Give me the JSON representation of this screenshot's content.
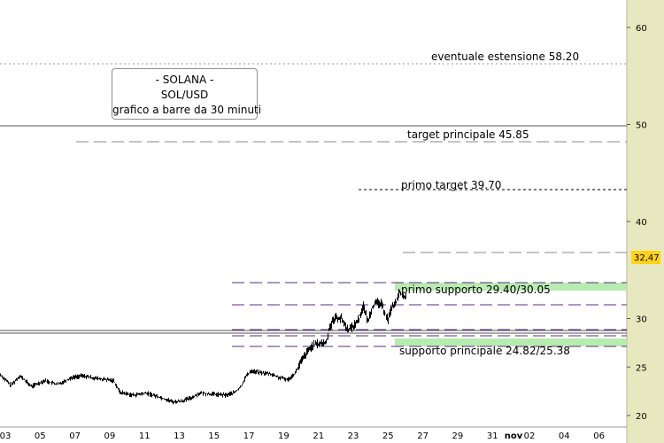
{
  "chart_data": {
    "type": "bar",
    "instrument": {
      "line1": "- SOLANA -",
      "line2": "SOL/USD",
      "line3": "grafico a barre da 30 minuti"
    },
    "last_price_label": "32,47",
    "last_price": 32.47,
    "y_ticks": [
      20,
      25,
      30,
      40,
      50,
      60
    ],
    "y_tick_labels": [
      "20",
      "25",
      "30",
      "40",
      "50",
      "60"
    ],
    "ylim": [
      19.5,
      66
    ],
    "x_tick_labels": [
      "03",
      "05",
      "07",
      "09",
      "11",
      "13",
      "15",
      "17",
      "19",
      "21",
      "23",
      "25",
      "27",
      "29",
      "31",
      "nov",
      "02",
      "04",
      "06"
    ],
    "levels": [
      {
        "name": "extension",
        "label": "eventuale estensione 58.20",
        "value": 58.2,
        "style": "dotted"
      },
      {
        "name": "main-target",
        "label": "target principale 45.85",
        "value": 45.85,
        "style": "dashed"
      },
      {
        "name": "first-target",
        "label": "primo target 39.70",
        "value": 39.7,
        "style": "dotted"
      },
      {
        "name": "first-support",
        "label": "primo supporto 29.40/30.05",
        "low": 29.4,
        "high": 30.05,
        "style": "band"
      },
      {
        "name": "main-support",
        "label": "supporto principale 24.82/25.38",
        "low": 24.82,
        "high": 25.38,
        "style": "band"
      }
    ],
    "price_path": [
      [
        0,
        24.2
      ],
      [
        12,
        23.1
      ],
      [
        22,
        24.1
      ],
      [
        35,
        23.0
      ],
      [
        50,
        23.6
      ],
      [
        65,
        23.2
      ],
      [
        80,
        23.9
      ],
      [
        92,
        24.1
      ],
      [
        110,
        23.8
      ],
      [
        128,
        23.6
      ],
      [
        135,
        22.4
      ],
      [
        150,
        22.1
      ],
      [
        165,
        22.3
      ],
      [
        180,
        21.9
      ],
      [
        195,
        21.4
      ],
      [
        205,
        21.5
      ],
      [
        215,
        21.8
      ],
      [
        225,
        22.3
      ],
      [
        240,
        22.2
      ],
      [
        255,
        22.1
      ],
      [
        265,
        22.4
      ],
      [
        272,
        23.0
      ],
      [
        277,
        24.0
      ],
      [
        283,
        24.6
      ],
      [
        295,
        24.4
      ],
      [
        305,
        24.3
      ],
      [
        315,
        23.9
      ],
      [
        325,
        23.7
      ],
      [
        333,
        24.4
      ],
      [
        340,
        25.6
      ],
      [
        345,
        26.3
      ],
      [
        352,
        27.2
      ],
      [
        360,
        27.4
      ],
      [
        368,
        27.5
      ],
      [
        372,
        29.2
      ],
      [
        378,
        30.1
      ],
      [
        385,
        30.0
      ],
      [
        392,
        28.9
      ],
      [
        398,
        29.1
      ],
      [
        405,
        30.0
      ],
      [
        410,
        31.3
      ],
      [
        415,
        29.7
      ],
      [
        420,
        31.2
      ],
      [
        425,
        31.6
      ],
      [
        430,
        31.5
      ],
      [
        435,
        30.5
      ],
      [
        438,
        29.9
      ],
      [
        442,
        31.2
      ],
      [
        447,
        31.6
      ],
      [
        451,
        32.9
      ],
      [
        455,
        32.1
      ],
      [
        458,
        32.47
      ]
    ]
  }
}
